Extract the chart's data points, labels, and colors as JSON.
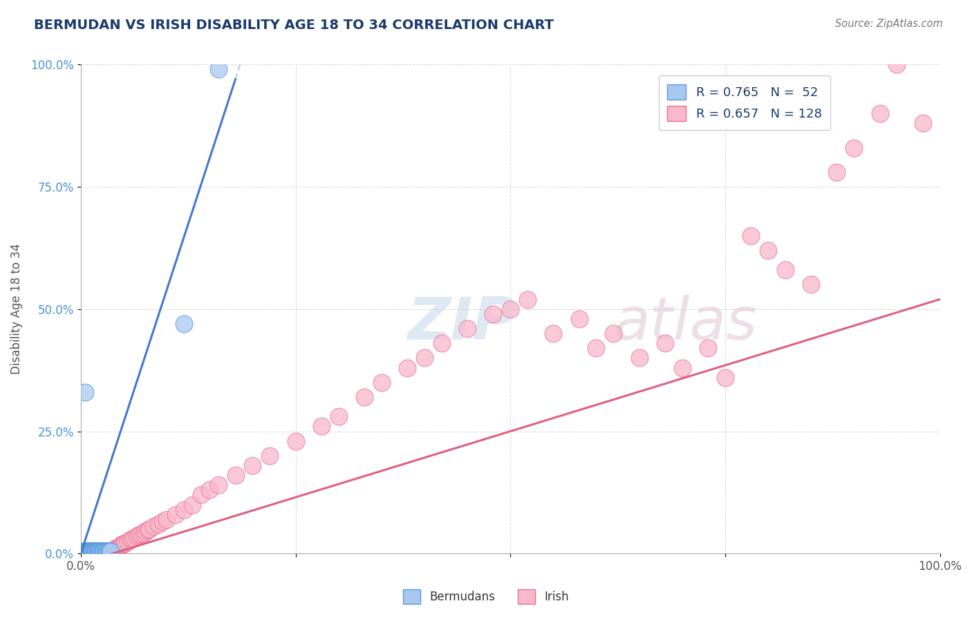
{
  "title": "BERMUDAN VS IRISH DISABILITY AGE 18 TO 34 CORRELATION CHART",
  "source_text": "Source: ZipAtlas.com",
  "ylabel": "Disability Age 18 to 34",
  "xlim": [
    0,
    1
  ],
  "ylim": [
    0,
    1
  ],
  "xtick_positions": [
    0.0,
    0.25,
    0.5,
    0.75,
    1.0
  ],
  "xtick_labels": [
    "0.0%",
    "",
    "",
    "",
    "100.0%"
  ],
  "ytick_positions": [
    0.0,
    0.25,
    0.5,
    0.75,
    1.0
  ],
  "ytick_labels": [
    "0.0%",
    "25.0%",
    "50.0%",
    "75.0%",
    "100.0%"
  ],
  "bermuda_fill_color": "#a8c8f0",
  "bermuda_edge_color": "#5599dd",
  "irish_fill_color": "#f9b8cb",
  "irish_edge_color": "#e87090",
  "bermuda_line_color": "#4477cc",
  "irish_line_color": "#e06080",
  "bermuda_R": 0.765,
  "bermuda_N": 52,
  "irish_R": 0.657,
  "irish_N": 128,
  "legend_label_bermuda": "R = 0.765   N =  52",
  "legend_label_irish": "R = 0.657   N = 128",
  "watermark_zip": "ZIP",
  "watermark_atlas": "atlas",
  "background_color": "#ffffff",
  "grid_color": "#cccccc",
  "title_color": "#1a3a6b",
  "source_color": "#777777",
  "ytick_color": "#4a90d9",
  "xtick_color": "#555555",
  "bermuda_x": [
    0.003,
    0.004,
    0.005,
    0.005,
    0.006,
    0.006,
    0.007,
    0.007,
    0.008,
    0.008,
    0.009,
    0.009,
    0.01,
    0.01,
    0.01,
    0.011,
    0.011,
    0.012,
    0.012,
    0.013,
    0.013,
    0.014,
    0.014,
    0.015,
    0.015,
    0.016,
    0.016,
    0.017,
    0.018,
    0.018,
    0.019,
    0.02,
    0.02,
    0.021,
    0.022,
    0.022,
    0.023,
    0.024,
    0.025,
    0.025,
    0.026,
    0.027,
    0.028,
    0.029,
    0.03,
    0.031,
    0.032,
    0.033,
    0.034,
    0.035,
    0.12,
    0.16
  ],
  "bermuda_y": [
    0.005,
    0.005,
    0.005,
    0.33,
    0.005,
    0.005,
    0.005,
    0.005,
    0.005,
    0.005,
    0.005,
    0.005,
    0.005,
    0.005,
    0.005,
    0.005,
    0.005,
    0.005,
    0.005,
    0.005,
    0.005,
    0.005,
    0.005,
    0.005,
    0.005,
    0.005,
    0.005,
    0.005,
    0.005,
    0.005,
    0.005,
    0.005,
    0.005,
    0.005,
    0.005,
    0.005,
    0.005,
    0.005,
    0.005,
    0.005,
    0.005,
    0.005,
    0.005,
    0.005,
    0.005,
    0.005,
    0.005,
    0.005,
    0.005,
    0.005,
    0.47,
    0.99
  ],
  "irish_x": [
    0.003,
    0.004,
    0.005,
    0.005,
    0.006,
    0.006,
    0.007,
    0.007,
    0.008,
    0.008,
    0.009,
    0.009,
    0.01,
    0.01,
    0.011,
    0.011,
    0.012,
    0.012,
    0.013,
    0.013,
    0.014,
    0.014,
    0.015,
    0.015,
    0.016,
    0.016,
    0.017,
    0.017,
    0.018,
    0.018,
    0.019,
    0.019,
    0.02,
    0.02,
    0.021,
    0.021,
    0.022,
    0.022,
    0.023,
    0.023,
    0.024,
    0.024,
    0.025,
    0.025,
    0.026,
    0.026,
    0.027,
    0.027,
    0.028,
    0.028,
    0.029,
    0.03,
    0.03,
    0.031,
    0.032,
    0.032,
    0.033,
    0.034,
    0.035,
    0.035,
    0.036,
    0.037,
    0.038,
    0.039,
    0.04,
    0.04,
    0.042,
    0.043,
    0.045,
    0.046,
    0.048,
    0.05,
    0.05,
    0.052,
    0.055,
    0.058,
    0.06,
    0.062,
    0.065,
    0.068,
    0.07,
    0.073,
    0.075,
    0.078,
    0.08,
    0.085,
    0.09,
    0.095,
    0.1,
    0.11,
    0.12,
    0.13,
    0.14,
    0.15,
    0.16,
    0.18,
    0.2,
    0.22,
    0.25,
    0.28,
    0.3,
    0.33,
    0.35,
    0.38,
    0.4,
    0.42,
    0.45,
    0.48,
    0.5,
    0.52,
    0.55,
    0.58,
    0.6,
    0.62,
    0.65,
    0.68,
    0.7,
    0.73,
    0.75,
    0.78,
    0.8,
    0.82,
    0.85,
    0.88,
    0.9,
    0.93,
    0.95,
    0.98
  ],
  "irish_y": [
    0.005,
    0.005,
    0.005,
    0.005,
    0.005,
    0.005,
    0.005,
    0.005,
    0.005,
    0.005,
    0.005,
    0.005,
    0.005,
    0.005,
    0.005,
    0.005,
    0.005,
    0.005,
    0.005,
    0.005,
    0.005,
    0.005,
    0.005,
    0.005,
    0.005,
    0.005,
    0.005,
    0.005,
    0.005,
    0.005,
    0.005,
    0.005,
    0.005,
    0.005,
    0.005,
    0.005,
    0.005,
    0.005,
    0.005,
    0.005,
    0.005,
    0.005,
    0.005,
    0.005,
    0.005,
    0.005,
    0.005,
    0.005,
    0.005,
    0.005,
    0.005,
    0.005,
    0.005,
    0.005,
    0.005,
    0.005,
    0.005,
    0.005,
    0.005,
    0.005,
    0.005,
    0.005,
    0.005,
    0.005,
    0.01,
    0.01,
    0.012,
    0.012,
    0.015,
    0.015,
    0.018,
    0.02,
    0.02,
    0.022,
    0.025,
    0.028,
    0.03,
    0.032,
    0.035,
    0.038,
    0.04,
    0.042,
    0.045,
    0.048,
    0.05,
    0.055,
    0.06,
    0.065,
    0.07,
    0.08,
    0.09,
    0.1,
    0.12,
    0.13,
    0.14,
    0.16,
    0.18,
    0.2,
    0.23,
    0.26,
    0.28,
    0.32,
    0.35,
    0.38,
    0.4,
    0.43,
    0.46,
    0.49,
    0.5,
    0.52,
    0.45,
    0.48,
    0.42,
    0.45,
    0.4,
    0.43,
    0.38,
    0.42,
    0.36,
    0.65,
    0.62,
    0.58,
    0.55,
    0.78,
    0.83,
    0.9,
    1.0,
    0.88
  ]
}
